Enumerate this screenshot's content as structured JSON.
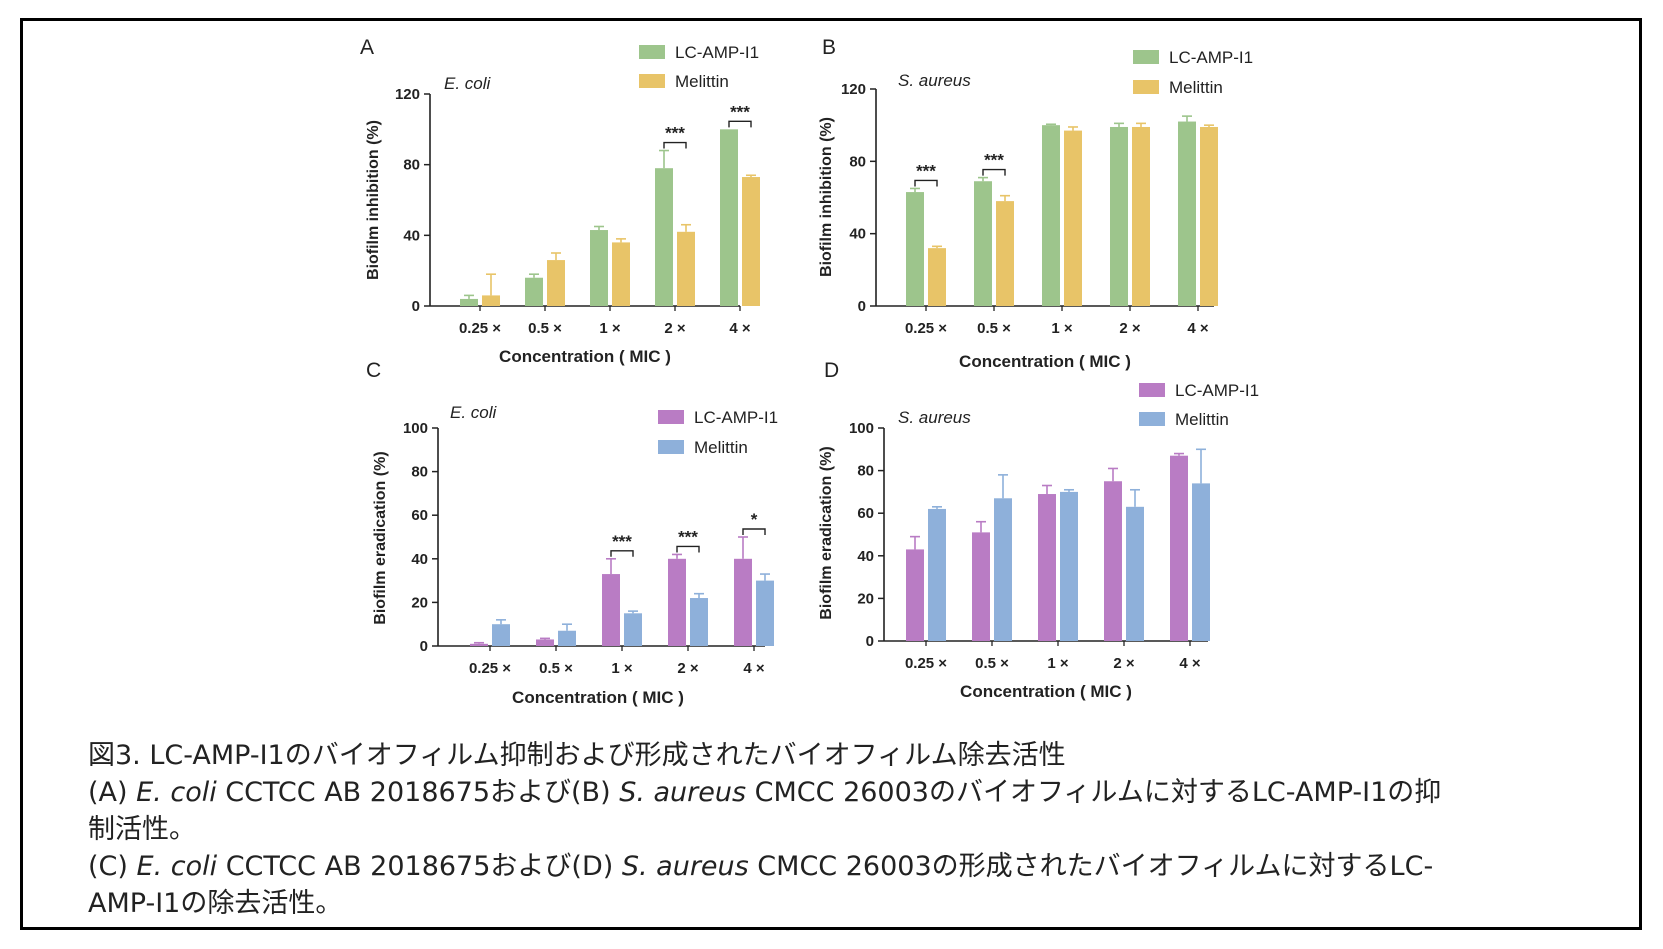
{
  "figure": {
    "caption": {
      "line1": "図3. LC-AMP-I1のバイオフィルム抑制および形成されたバイオフィルム除去活性",
      "line2_a": "(A) ",
      "line2_b": "E. coli",
      "line2_c": " CCTCC AB 2018675および(B) ",
      "line2_d": "S. aureus",
      "line2_e": " CMCC 26003のバイオフィルムに対するLC-AMP-I1の抑",
      "line3": "制活性。",
      "line4_a": "(C) ",
      "line4_b": "E. coli",
      "line4_c": " CCTCC AB 2018675および(D) ",
      "line4_d": "S. aureus",
      "line4_e": " CMCC 26003の形成されたバイオフィルムに対するLC-",
      "line5": "AMP-I1の除去活性。"
    }
  },
  "chart_data": [
    {
      "panel": "A",
      "type": "bar",
      "subtitle": "E. coli",
      "xlabel": "Concentration ( MIC )",
      "ylabel": "Biofilm inhibition (%)",
      "ylim": [
        0,
        120
      ],
      "yticks": [
        0,
        40,
        80,
        120
      ],
      "categories": [
        "0.25 ×",
        "0.5 ×",
        "1 ×",
        "2 ×",
        "4 ×"
      ],
      "legend_position": "top-right",
      "series": [
        {
          "name": "LC-AMP-I1",
          "color": "#9dc58c",
          "values": [
            4,
            16,
            43,
            78,
            100
          ],
          "errors": [
            2,
            2,
            2,
            10,
            0
          ]
        },
        {
          "name": "Melittin",
          "color": "#e8c468",
          "values": [
            6,
            26,
            36,
            42,
            73
          ],
          "errors": [
            12,
            4,
            2,
            4,
            1
          ]
        }
      ],
      "significance": [
        {
          "category_index": 3,
          "label": "***"
        },
        {
          "category_index": 4,
          "label": "***"
        }
      ]
    },
    {
      "panel": "B",
      "type": "bar",
      "subtitle": "S. aureus",
      "xlabel": "Concentration ( MIC )",
      "ylabel": "Biofilm inhibition (%)",
      "ylim": [
        0,
        120
      ],
      "yticks": [
        0,
        40,
        80,
        120
      ],
      "categories": [
        "0.25 ×",
        "0.5 ×",
        "1 ×",
        "2 ×",
        "4 ×"
      ],
      "legend_position": "top-right",
      "series": [
        {
          "name": "LC-AMP-I1",
          "color": "#9dc58c",
          "values": [
            63,
            69,
            100,
            99,
            102
          ],
          "errors": [
            2,
            2,
            0.5,
            2,
            3
          ]
        },
        {
          "name": "Melittin",
          "color": "#e8c468",
          "values": [
            32,
            58,
            97,
            99,
            99
          ],
          "errors": [
            1,
            3,
            2,
            2,
            1
          ]
        }
      ],
      "significance": [
        {
          "category_index": 0,
          "label": "***"
        },
        {
          "category_index": 1,
          "label": "***"
        }
      ]
    },
    {
      "panel": "C",
      "type": "bar",
      "subtitle": "E. coli",
      "xlabel": "Concentration ( MIC )",
      "ylabel": "Biofilm eradication (%)",
      "ylim": [
        0,
        100
      ],
      "yticks": [
        0,
        20,
        40,
        60,
        80,
        100
      ],
      "categories": [
        "0.25 ×",
        "0.5 ×",
        "1 ×",
        "2 ×",
        "4 ×"
      ],
      "legend_position": "top-right",
      "series": [
        {
          "name": "LC-AMP-I1",
          "color": "#b97cc4",
          "values": [
            1,
            3,
            33,
            40,
            40
          ],
          "errors": [
            0.5,
            0.5,
            7,
            2,
            10
          ]
        },
        {
          "name": "Melittin",
          "color": "#8eb0da",
          "values": [
            10,
            7,
            15,
            22,
            30
          ],
          "errors": [
            2,
            3,
            1,
            2,
            3
          ]
        }
      ],
      "significance": [
        {
          "category_index": 2,
          "label": "***"
        },
        {
          "category_index": 3,
          "label": "***"
        },
        {
          "category_index": 4,
          "label": "*"
        }
      ]
    },
    {
      "panel": "D",
      "type": "bar",
      "subtitle": "S. aureus",
      "xlabel": "Concentration ( MIC )",
      "ylabel": "Biofilm eradication (%)",
      "ylim": [
        0,
        100
      ],
      "yticks": [
        0,
        20,
        40,
        60,
        80,
        100
      ],
      "categories": [
        "0.25 ×",
        "0.5 ×",
        "1 ×",
        "2 ×",
        "4 ×"
      ],
      "legend_position": "top-right",
      "series": [
        {
          "name": "LC-AMP-I1",
          "color": "#b97cc4",
          "values": [
            43,
            51,
            69,
            75,
            87
          ],
          "errors": [
            6,
            5,
            4,
            6,
            1
          ]
        },
        {
          "name": "Melittin",
          "color": "#8eb0da",
          "values": [
            62,
            67,
            70,
            63,
            74
          ],
          "errors": [
            1,
            11,
            1,
            8,
            16
          ]
        }
      ],
      "significance": []
    }
  ]
}
